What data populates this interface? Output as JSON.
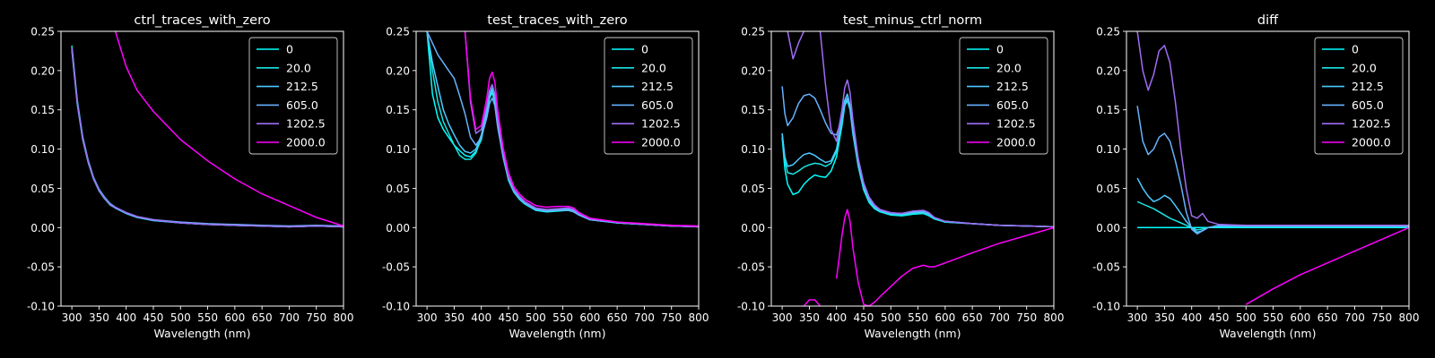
{
  "figure": {
    "background": "#000000",
    "foreground": "#ffffff"
  },
  "legend_labels": [
    "0",
    "20.0",
    "212.5",
    "605.0",
    "1202.5",
    "2000.0"
  ],
  "series_colors": [
    "#00ffff",
    "#1ae3e3",
    "#4cc9ff",
    "#67b2ff",
    "#a06cf5",
    "#ff00ff"
  ],
  "chart_data": [
    {
      "type": "line",
      "title": "ctrl_traces_with_zero",
      "xlabel": "Wavelength (nm)",
      "ylabel": "",
      "xlim": [
        280,
        800
      ],
      "ylim": [
        -0.1,
        0.25
      ],
      "xticks": [
        300,
        350,
        400,
        450,
        500,
        550,
        600,
        650,
        700,
        750,
        800
      ],
      "yticks": [
        -0.1,
        -0.05,
        0.0,
        0.05,
        0.1,
        0.15,
        0.2,
        0.25
      ],
      "legend_position": "top-right",
      "x": [
        300,
        310,
        320,
        330,
        340,
        350,
        360,
        370,
        380,
        400,
        420,
        450,
        500,
        550,
        600,
        650,
        700,
        750,
        800
      ],
      "series": [
        {
          "name": "0",
          "values": [
            0.23,
            0.16,
            0.115,
            0.085,
            0.063,
            0.048,
            0.038,
            0.03,
            0.025,
            0.018,
            0.013,
            0.009,
            0.006,
            0.004,
            0.003,
            0.002,
            0.001,
            0.002,
            0.001
          ]
        },
        {
          "name": "20.0",
          "values": [
            0.232,
            0.162,
            0.116,
            0.086,
            0.064,
            0.049,
            0.039,
            0.031,
            0.026,
            0.019,
            0.014,
            0.01,
            0.006,
            0.004,
            0.003,
            0.002,
            0.001,
            0.002,
            0.001
          ]
        },
        {
          "name": "212.5",
          "values": [
            0.228,
            0.158,
            0.113,
            0.084,
            0.062,
            0.047,
            0.037,
            0.029,
            0.025,
            0.018,
            0.013,
            0.009,
            0.006,
            0.004,
            0.003,
            0.002,
            0.001,
            0.002,
            0.001
          ]
        },
        {
          "name": "605.0",
          "values": [
            0.226,
            0.157,
            0.112,
            0.083,
            0.062,
            0.047,
            0.037,
            0.03,
            0.025,
            0.019,
            0.014,
            0.01,
            0.007,
            0.005,
            0.004,
            0.003,
            0.002,
            0.003,
            0.002
          ]
        },
        {
          "name": "1202.5",
          "values": [
            0.229,
            0.159,
            0.114,
            0.085,
            0.063,
            0.048,
            0.038,
            0.03,
            0.026,
            0.019,
            0.014,
            0.01,
            0.006,
            0.004,
            0.003,
            0.002,
            0.001,
            0.002,
            0.001
          ]
        },
        {
          "name": "2000.0",
          "values": [
            null,
            null,
            null,
            null,
            null,
            null,
            null,
            null,
            0.25,
            0.205,
            0.175,
            0.148,
            0.112,
            0.085,
            0.062,
            0.043,
            0.028,
            0.013,
            0.002
          ]
        }
      ]
    },
    {
      "type": "line",
      "title": "test_traces_with_zero",
      "xlabel": "Wavelength (nm)",
      "ylabel": "",
      "xlim": [
        280,
        800
      ],
      "ylim": [
        -0.1,
        0.25
      ],
      "xticks": [
        300,
        350,
        400,
        450,
        500,
        550,
        600,
        650,
        700,
        750,
        800
      ],
      "yticks": [
        -0.1,
        -0.05,
        0.0,
        0.05,
        0.1,
        0.15,
        0.2,
        0.25
      ],
      "legend_position": "top-right",
      "x": [
        300,
        310,
        320,
        330,
        340,
        350,
        360,
        370,
        380,
        390,
        400,
        410,
        415,
        420,
        425,
        430,
        440,
        450,
        460,
        470,
        480,
        500,
        520,
        540,
        560,
        570,
        580,
        600,
        650,
        700,
        750,
        800
      ],
      "series": [
        {
          "name": "0",
          "values": [
            0.25,
            0.17,
            0.14,
            0.125,
            0.115,
            0.105,
            0.098,
            0.092,
            0.09,
            0.097,
            0.112,
            0.145,
            0.165,
            0.172,
            0.16,
            0.13,
            0.09,
            0.06,
            0.045,
            0.036,
            0.03,
            0.022,
            0.02,
            0.021,
            0.022,
            0.02,
            0.016,
            0.01,
            0.006,
            0.004,
            0.002,
            0.001
          ]
        },
        {
          "name": "20.0",
          "values": [
            0.25,
            0.2,
            0.16,
            0.135,
            0.12,
            0.105,
            0.092,
            0.087,
            0.087,
            0.095,
            0.115,
            0.15,
            0.17,
            0.178,
            0.165,
            0.135,
            0.092,
            0.062,
            0.046,
            0.037,
            0.031,
            0.023,
            0.021,
            0.022,
            0.023,
            0.021,
            0.017,
            0.01,
            0.006,
            0.004,
            0.002,
            0.001
          ]
        },
        {
          "name": "212.5",
          "values": [
            0.25,
            0.21,
            0.18,
            0.15,
            0.132,
            0.118,
            0.105,
            0.097,
            0.095,
            0.1,
            0.118,
            0.15,
            0.168,
            0.175,
            0.163,
            0.133,
            0.092,
            0.063,
            0.047,
            0.038,
            0.032,
            0.024,
            0.022,
            0.023,
            0.024,
            0.022,
            0.017,
            0.011,
            0.006,
            0.004,
            0.002,
            0.001
          ]
        },
        {
          "name": "605.0",
          "values": [
            0.25,
            0.235,
            0.22,
            0.21,
            0.2,
            0.19,
            0.168,
            0.145,
            0.115,
            0.105,
            0.115,
            0.14,
            0.158,
            0.165,
            0.155,
            0.128,
            0.09,
            0.062,
            0.046,
            0.037,
            0.031,
            0.023,
            0.021,
            0.022,
            0.022,
            0.02,
            0.016,
            0.01,
            0.006,
            0.004,
            0.002,
            0.001
          ]
        },
        {
          "name": "1202.5",
          "values": [
            null,
            null,
            null,
            null,
            null,
            null,
            null,
            0.25,
            0.16,
            0.12,
            0.125,
            0.155,
            0.175,
            0.182,
            0.17,
            0.14,
            0.096,
            0.065,
            0.049,
            0.04,
            0.033,
            0.025,
            0.023,
            0.024,
            0.025,
            0.023,
            0.018,
            0.011,
            0.007,
            0.004,
            0.002,
            0.001
          ]
        },
        {
          "name": "2000.0",
          "values": [
            null,
            null,
            null,
            null,
            null,
            null,
            null,
            0.25,
            0.165,
            0.125,
            0.13,
            0.165,
            0.19,
            0.198,
            0.185,
            0.15,
            0.102,
            0.07,
            0.052,
            0.043,
            0.036,
            0.028,
            0.026,
            0.027,
            0.027,
            0.025,
            0.019,
            0.012,
            0.007,
            0.005,
            0.003,
            0.002
          ]
        }
      ]
    },
    {
      "type": "line",
      "title": "test_minus_ctrl_norm",
      "xlabel": "Wavelength (nm)",
      "ylabel": "",
      "xlim": [
        280,
        800
      ],
      "ylim": [
        -0.1,
        0.25
      ],
      "xticks": [
        300,
        350,
        400,
        450,
        500,
        550,
        600,
        650,
        700,
        750,
        800
      ],
      "yticks": [
        -0.1,
        -0.05,
        0.0,
        0.05,
        0.1,
        0.15,
        0.2,
        0.25
      ],
      "legend_position": "top-right",
      "x": [
        300,
        305,
        310,
        320,
        330,
        340,
        350,
        360,
        370,
        380,
        390,
        400,
        410,
        415,
        420,
        425,
        430,
        440,
        450,
        460,
        470,
        480,
        500,
        520,
        540,
        560,
        570,
        580,
        600,
        650,
        700,
        750,
        800
      ],
      "series": [
        {
          "name": "0",
          "values": [
            0.115,
            0.075,
            0.055,
            0.042,
            0.045,
            0.055,
            0.062,
            0.067,
            0.065,
            0.064,
            0.072,
            0.09,
            0.13,
            0.155,
            0.162,
            0.15,
            0.12,
            0.078,
            0.048,
            0.032,
            0.024,
            0.02,
            0.016,
            0.015,
            0.017,
            0.018,
            0.015,
            0.011,
            0.007,
            0.005,
            0.003,
            0.002,
            0.001
          ]
        },
        {
          "name": "20.0",
          "values": [
            0.12,
            0.085,
            0.07,
            0.068,
            0.072,
            0.077,
            0.08,
            0.082,
            0.081,
            0.078,
            0.082,
            0.097,
            0.135,
            0.158,
            0.165,
            0.152,
            0.122,
            0.08,
            0.05,
            0.034,
            0.025,
            0.021,
            0.017,
            0.016,
            0.018,
            0.019,
            0.016,
            0.012,
            0.007,
            0.005,
            0.003,
            0.002,
            0.001
          ]
        },
        {
          "name": "212.5",
          "values": [
            0.12,
            0.09,
            0.078,
            0.08,
            0.087,
            0.093,
            0.095,
            0.092,
            0.087,
            0.083,
            0.085,
            0.1,
            0.14,
            0.162,
            0.17,
            0.156,
            0.125,
            0.082,
            0.052,
            0.035,
            0.026,
            0.022,
            0.018,
            0.017,
            0.019,
            0.02,
            0.017,
            0.012,
            0.008,
            0.005,
            0.003,
            0.002,
            0.001
          ]
        },
        {
          "name": "605.0",
          "values": [
            0.18,
            0.145,
            0.13,
            0.14,
            0.158,
            0.168,
            0.17,
            0.165,
            0.15,
            0.133,
            0.12,
            0.118,
            0.14,
            0.158,
            0.165,
            0.152,
            0.124,
            0.082,
            0.053,
            0.036,
            0.027,
            0.022,
            0.018,
            0.018,
            0.02,
            0.021,
            0.018,
            0.013,
            0.008,
            0.005,
            0.003,
            0.002,
            0.001
          ]
        },
        {
          "name": "1202.5",
          "values": [
            null,
            null,
            0.25,
            0.215,
            0.235,
            0.25,
            null,
            null,
            0.25,
            0.18,
            0.125,
            0.11,
            0.15,
            0.178,
            0.188,
            0.172,
            0.138,
            0.088,
            0.057,
            0.039,
            0.029,
            0.023,
            0.019,
            0.018,
            0.021,
            0.022,
            0.019,
            0.013,
            0.008,
            0.005,
            0.003,
            0.002,
            0.001
          ]
        },
        {
          "name": "2000.0",
          "values": [
            -0.043,
            null,
            null,
            null,
            null,
            -0.1,
            -0.092,
            -0.092,
            -0.1,
            null,
            null,
            -0.065,
            -0.01,
            0.012,
            0.023,
            0.008,
            -0.025,
            -0.07,
            -0.098,
            -0.1,
            -0.095,
            -0.088,
            -0.075,
            -0.062,
            -0.052,
            -0.048,
            -0.05,
            -0.05,
            -0.045,
            -0.032,
            -0.02,
            -0.01,
            0.0
          ]
        }
      ]
    },
    {
      "type": "line",
      "title": "diff",
      "xlabel": "Wavelength (nm)",
      "ylabel": "",
      "xlim": [
        280,
        800
      ],
      "ylim": [
        -0.1,
        0.25
      ],
      "xticks": [
        300,
        350,
        400,
        450,
        500,
        550,
        600,
        650,
        700,
        750,
        800
      ],
      "yticks": [
        -0.1,
        -0.05,
        0.0,
        0.05,
        0.1,
        0.15,
        0.2,
        0.25
      ],
      "legend_position": "top-right",
      "x": [
        300,
        310,
        320,
        330,
        340,
        350,
        360,
        370,
        380,
        390,
        400,
        410,
        420,
        430,
        450,
        500,
        550,
        600,
        650,
        700,
        750,
        800
      ],
      "series": [
        {
          "name": "0",
          "values": [
            0.0,
            0.0,
            0.0,
            0.0,
            0.0,
            0.0,
            0.0,
            0.0,
            0.0,
            0.0,
            0.0,
            0.0,
            0.0,
            0.0,
            0.0,
            0.0,
            0.0,
            0.0,
            0.0,
            0.0,
            0.0,
            0.0
          ]
        },
        {
          "name": "20.0",
          "values": [
            0.033,
            0.03,
            0.027,
            0.024,
            0.02,
            0.016,
            0.012,
            0.009,
            0.006,
            0.003,
            0.0,
            -0.003,
            -0.002,
            0.0,
            0.001,
            0.001,
            0.001,
            0.001,
            0.001,
            0.001,
            0.001,
            0.001
          ]
        },
        {
          "name": "212.5",
          "values": [
            0.063,
            0.05,
            0.04,
            0.033,
            0.036,
            0.041,
            0.037,
            0.028,
            0.018,
            0.008,
            0.0,
            -0.006,
            -0.004,
            0.0,
            0.002,
            0.002,
            0.002,
            0.002,
            0.002,
            0.002,
            0.002,
            0.002
          ]
        },
        {
          "name": "605.0",
          "values": [
            0.155,
            0.11,
            0.093,
            0.1,
            0.115,
            0.12,
            0.11,
            0.085,
            0.055,
            0.02,
            -0.002,
            -0.008,
            -0.004,
            0.0,
            0.003,
            0.002,
            0.002,
            0.002,
            0.002,
            0.002,
            0.002,
            0.002
          ]
        },
        {
          "name": "1202.5",
          "values": [
            0.25,
            0.2,
            0.175,
            0.195,
            0.225,
            0.232,
            0.21,
            0.16,
            0.1,
            0.05,
            0.015,
            0.012,
            0.018,
            0.008,
            0.004,
            0.003,
            0.003,
            0.003,
            0.003,
            0.003,
            0.003,
            0.003
          ]
        },
        {
          "name": "2000.0",
          "values": [
            null,
            null,
            null,
            null,
            null,
            null,
            null,
            null,
            null,
            null,
            null,
            null,
            null,
            null,
            null,
            -0.098,
            -0.078,
            -0.06,
            -0.045,
            -0.03,
            -0.015,
            0.0
          ]
        }
      ]
    }
  ]
}
